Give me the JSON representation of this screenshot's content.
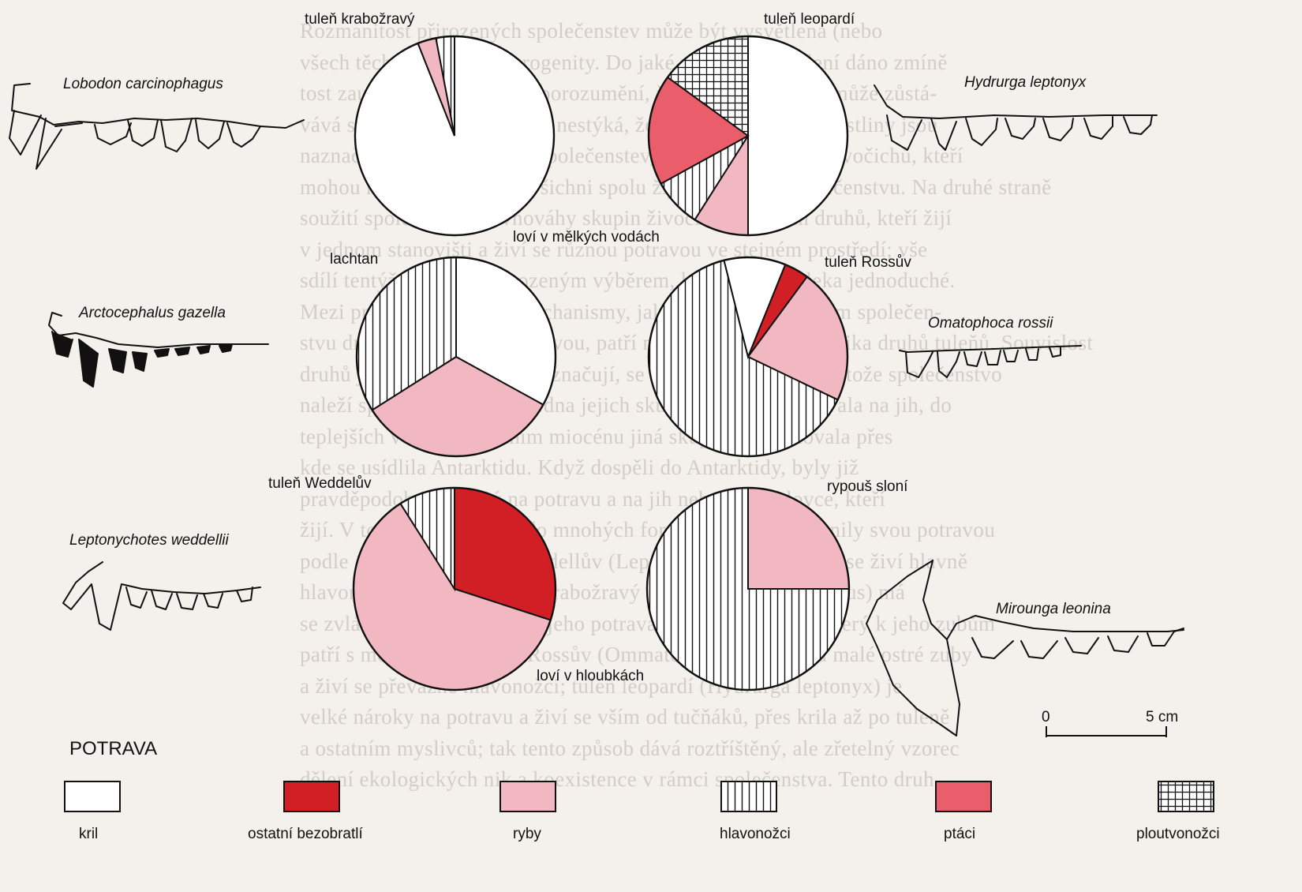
{
  "colors": {
    "kril": "#ffffff",
    "ostatni_bezobratli": "#d21f26",
    "ryby": "#f2b8c2",
    "hlavonozci": "vertical-lines",
    "ptaci": "#ea5d6a",
    "ploutvonozci": "grid"
  },
  "background_text": [
    "Rozmanitost přirozených společenstev může být vysvětlena (nebo",
    "všech těchto tří typů heterogenity. Do jaké míry je vysvětlení dáno zmíně",
    "tost zaujatá vysvětlením neporozumění, že na místní úrovni může zůstá-",
    "vává skupina zvířat, která se nestýká, že tyto živočichové a rostliny jsou",
    "naznačuje ještě rovnováha společenstev, zpochybněna řada živočichů, kteří",
    "mohou na bezobratlé, a ti všichni spolu žijí ve stejném společenstvu. Na druhé straně",
    "soužití společenstev rovnováhy skupin živočichů různých druhů, kteří žijí",
    "v jednom stanovišti a živí se různou potravou ve stejném prostředí; vše",
    "sdílí tentýž prostor s přirozeným výběrem, který není zdaleka jednoduché.",
    "Mezi pravděpodobnými mechanismy, jak spolu žijí ve stejném společen-",
    "stvu druhy s podobnou potravou, patří například soužití několika druhů tuleňů. Souvislost",
    "druhů jejichž potravou se vyznačují, se vyvíjela za staletí, protože společenstvo",
    "naleží společným rodům, jedna jejich skupina se však stěhovala na jih, do",
    "teplejších vod, a v pozdním miocénu jiná skupina pokračovala přes",
    "kde se usídlila Antarktidu. Když dospěli do Antarktidy, byly již",
    "pravděpodobně hotový na potravu a na jih nebezpečné lovce, kteří",
    "žijí. V tomto prostředí se do mnohých forem zásadně rozrůznily svou potravou",
    "podle 11.1. Např. tuleň Weddellův (Leptonychotes weddellii) se živí hlavně",
    "hlavonožci a rybami; tuleň krabožravý (Lobodon carcinophagus) má",
    "se zvláštně utvářené zuby a jeho potrava je tvořena krilem, který k jeho zubům",
    "patří s mořské řasy, tuleň Rossův (Ommatophoca rossii) má malé ostré zuby",
    "a živí se převážně hlavonožci; tuleň leopardí (Hydrurga leptonyx) je",
    "velké nároky na potravu a živí se vším od tučňáků, přes krila až po tuleně",
    "a ostatním myslivců; tak tento způsob dává roztříštěný, ale zřetelný vzorec",
    "dělení ekologických nik a koexistence v rámci společenstva. Tento druh"
  ],
  "species_labels": [
    "Lobodon carcinophagus",
    "Arctocephalus gazella",
    "Leptonychotes weddellii",
    "Hydrurga leptonyx",
    "Omatophoca rossii",
    "Mirounga leonina"
  ],
  "group_labels": {
    "shallow": "loví v mělkých vodách",
    "deep": "loví v hloubkách"
  },
  "scale_bar": {
    "start": "0",
    "end": "5 cm"
  },
  "legend": {
    "title": "POTRAVA",
    "items": [
      {
        "key": "kril",
        "label": "kril"
      },
      {
        "key": "ostatni_bezobratli",
        "label": "ostatní bezobratlí"
      },
      {
        "key": "ryby",
        "label": "ryby"
      },
      {
        "key": "hlavonozci",
        "label": "hlavonožci"
      },
      {
        "key": "ptaci",
        "label": "ptáci"
      },
      {
        "key": "ploutvonozci",
        "label": "ploutvonožci"
      }
    ]
  },
  "chart_data": {
    "type": "pie",
    "categories": [
      "kril",
      "ostatní bezobratlí",
      "ryby",
      "hlavonožci",
      "ptáci",
      "ploutvonožci"
    ],
    "pies": [
      {
        "name": "tuleň krabožravý",
        "group": "shallow",
        "slices": [
          {
            "category": "kril",
            "value": 94
          },
          {
            "category": "ryby",
            "value": 3
          },
          {
            "category": "hlavonožci",
            "value": 3
          }
        ]
      },
      {
        "name": "tuleň leopardí",
        "group": "shallow",
        "slices": [
          {
            "category": "kril",
            "value": 50
          },
          {
            "category": "ryby",
            "value": 9
          },
          {
            "category": "hlavonožci",
            "value": 8
          },
          {
            "category": "ptáci",
            "value": 18
          },
          {
            "category": "ploutvonožci",
            "value": 15
          }
        ]
      },
      {
        "name": "lachtan",
        "group": "shallow",
        "slices": [
          {
            "category": "kril",
            "value": 33
          },
          {
            "category": "ryby",
            "value": 33
          },
          {
            "category": "hlavonožci",
            "value": 34
          }
        ]
      },
      {
        "name": "tuleň Rossův",
        "group": "deep",
        "slices": [
          {
            "category": "ostatní bezobratlí",
            "value": 4
          },
          {
            "category": "ryby",
            "value": 22
          },
          {
            "category": "hlavonožci",
            "value": 64
          },
          {
            "category": "kril",
            "value": 10
          }
        ]
      },
      {
        "name": "tuleň Weddelův",
        "group": "deep",
        "slices": [
          {
            "category": "ostatní bezobratlí",
            "value": 30
          },
          {
            "category": "ryby",
            "value": 61
          },
          {
            "category": "hlavonožci",
            "value": 9
          }
        ]
      },
      {
        "name": "rypouš sloní",
        "group": "deep",
        "slices": [
          {
            "category": "ryby",
            "value": 25
          },
          {
            "category": "hlavonožci",
            "value": 75
          }
        ]
      }
    ]
  }
}
